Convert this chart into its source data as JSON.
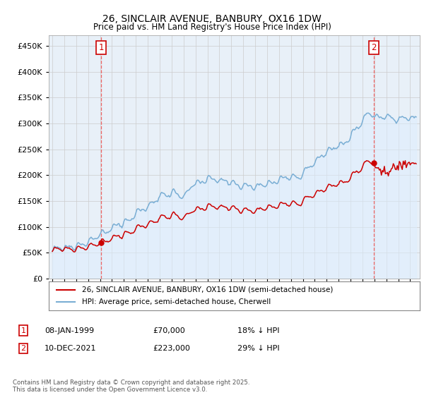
{
  "title": "26, SINCLAIR AVENUE, BANBURY, OX16 1DW",
  "subtitle": "Price paid vs. HM Land Registry's House Price Index (HPI)",
  "ylim": [
    0,
    470000
  ],
  "yticks": [
    0,
    50000,
    100000,
    150000,
    200000,
    250000,
    300000,
    350000,
    400000,
    450000
  ],
  "red_color": "#cc0000",
  "blue_color": "#7aaed4",
  "blue_fill": "#ddeeff",
  "vline_color": "#ee6666",
  "legend_label_red": "26, SINCLAIR AVENUE, BANBURY, OX16 1DW (semi-detached house)",
  "legend_label_blue": "HPI: Average price, semi-detached house, Cherwell",
  "table_row1": [
    "1",
    "08-JAN-1999",
    "£70,000",
    "18% ↓ HPI"
  ],
  "table_row2": [
    "2",
    "10-DEC-2021",
    "£223,000",
    "29% ↓ HPI"
  ],
  "copyright": "Contains HM Land Registry data © Crown copyright and database right 2025.\nThis data is licensed under the Open Government Licence v3.0.",
  "bg_color": "#ffffff",
  "grid_color": "#cccccc",
  "plot_bg": "#e8f0f8"
}
